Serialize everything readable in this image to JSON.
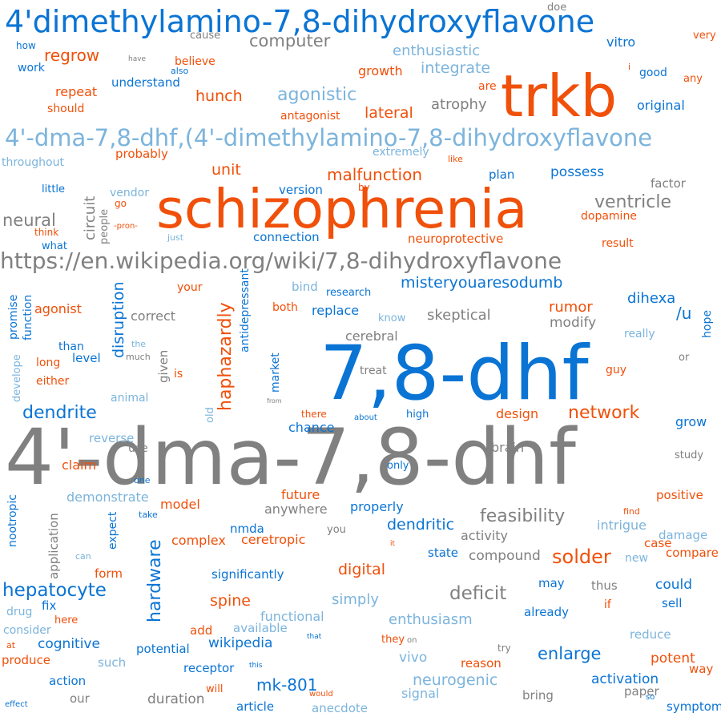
{
  "palette": {
    "gray": "#808080",
    "blue": "#0a74d4",
    "orange": "#f0500a",
    "light": "#7cb4dc"
  },
  "words": [
    {
      "t": "4'-dma-7,8-dhf",
      "c": "gray"
    },
    {
      "t": "4'dimethylamino-7,8-dihydroxyflavone",
      "c": "blue"
    },
    {
      "t": "trkb",
      "c": "orange"
    },
    {
      "t": "7,8-dhf",
      "c": "blue"
    },
    {
      "t": "schizophrenia",
      "c": "orange"
    },
    {
      "t": "4'-dma-7,8-dhf,(4'-dimethylamino-7,8-dihydroxyflavone",
      "c": "light"
    },
    {
      "t": "https://en.wikipedia.org/wiki/7,8-dihydroxyflavone",
      "c": "gray"
    },
    {
      "t": "computer",
      "c": "gray"
    },
    {
      "t": "regrow",
      "c": "orange"
    },
    {
      "t": "enthusiastic",
      "c": "light"
    },
    {
      "t": "integrate",
      "c": "light"
    },
    {
      "t": "growth",
      "c": "orange"
    },
    {
      "t": "believe",
      "c": "orange"
    },
    {
      "t": "cause",
      "c": "gray"
    },
    {
      "t": "doe",
      "c": "gray"
    },
    {
      "t": "very",
      "c": "orange"
    },
    {
      "t": "vitro",
      "c": "blue"
    },
    {
      "t": "how",
      "c": "blue"
    },
    {
      "t": "work",
      "c": "blue"
    },
    {
      "t": "have",
      "c": "gray"
    },
    {
      "t": "also",
      "c": "blue"
    },
    {
      "t": "i",
      "c": "orange"
    },
    {
      "t": "good",
      "c": "blue"
    },
    {
      "t": "any",
      "c": "orange"
    },
    {
      "t": "are",
      "c": "orange"
    },
    {
      "t": "understand",
      "c": "blue"
    },
    {
      "t": "repeat",
      "c": "orange"
    },
    {
      "t": "should",
      "c": "orange"
    },
    {
      "t": "hunch",
      "c": "orange"
    },
    {
      "t": "agonistic",
      "c": "light"
    },
    {
      "t": "lateral",
      "c": "orange"
    },
    {
      "t": "atrophy",
      "c": "gray"
    },
    {
      "t": "original",
      "c": "blue"
    },
    {
      "t": "antagonist",
      "c": "orange"
    },
    {
      "t": "probably",
      "c": "orange"
    },
    {
      "t": "extremely",
      "c": "light"
    },
    {
      "t": "like",
      "c": "orange"
    },
    {
      "t": "throughout",
      "c": "light"
    },
    {
      "t": "unit",
      "c": "orange"
    },
    {
      "t": "malfunction",
      "c": "orange"
    },
    {
      "t": "plan",
      "c": "blue"
    },
    {
      "t": "possess",
      "c": "blue"
    },
    {
      "t": "factor",
      "c": "gray"
    },
    {
      "t": "little",
      "c": "blue"
    },
    {
      "t": "circuit",
      "c": "gray"
    },
    {
      "t": "vendor",
      "c": "light"
    },
    {
      "t": "version",
      "c": "blue"
    },
    {
      "t": "by",
      "c": "orange"
    },
    {
      "t": "ventricle",
      "c": "gray"
    },
    {
      "t": "go",
      "c": "orange"
    },
    {
      "t": "neural",
      "c": "gray"
    },
    {
      "t": "people",
      "c": "gray"
    },
    {
      "t": "-pron-",
      "c": "orange"
    },
    {
      "t": "dopamine",
      "c": "orange"
    },
    {
      "t": "think",
      "c": "orange"
    },
    {
      "t": "what",
      "c": "blue"
    },
    {
      "t": "just",
      "c": "light"
    },
    {
      "t": "connection",
      "c": "blue"
    },
    {
      "t": "neuroprotective",
      "c": "orange"
    },
    {
      "t": "result",
      "c": "orange"
    },
    {
      "t": "your",
      "c": "orange"
    },
    {
      "t": "bind",
      "c": "light"
    },
    {
      "t": "research",
      "c": "blue"
    },
    {
      "t": "misteryouaresodumb",
      "c": "blue"
    },
    {
      "t": "dihexa",
      "c": "blue"
    },
    {
      "t": "promise",
      "c": "blue"
    },
    {
      "t": "function",
      "c": "blue"
    },
    {
      "t": "antidepressant",
      "c": "blue"
    },
    {
      "t": "agonist",
      "c": "orange"
    },
    {
      "t": "disruption",
      "c": "blue"
    },
    {
      "t": "correct",
      "c": "gray"
    },
    {
      "t": "haphazardly",
      "c": "orange"
    },
    {
      "t": "both",
      "c": "orange"
    },
    {
      "t": "replace",
      "c": "blue"
    },
    {
      "t": "know",
      "c": "light"
    },
    {
      "t": "skeptical",
      "c": "gray"
    },
    {
      "t": "rumor",
      "c": "orange"
    },
    {
      "t": "modify",
      "c": "gray"
    },
    {
      "t": "/u",
      "c": "blue"
    },
    {
      "t": "really",
      "c": "light"
    },
    {
      "t": "hope",
      "c": "blue"
    },
    {
      "t": "than",
      "c": "blue"
    },
    {
      "t": "level",
      "c": "blue"
    },
    {
      "t": "the",
      "c": "light"
    },
    {
      "t": "much",
      "c": "gray"
    },
    {
      "t": "cerebral",
      "c": "gray"
    },
    {
      "t": "long",
      "c": "orange"
    },
    {
      "t": "either",
      "c": "orange"
    },
    {
      "t": "develope",
      "c": "light"
    },
    {
      "t": "given",
      "c": "gray"
    },
    {
      "t": "is",
      "c": "orange"
    },
    {
      "t": "market",
      "c": "blue"
    },
    {
      "t": "treat",
      "c": "gray"
    },
    {
      "t": "guy",
      "c": "orange"
    },
    {
      "t": "or",
      "c": "gray"
    },
    {
      "t": "animal",
      "c": "light"
    },
    {
      "t": "from",
      "c": "gray"
    },
    {
      "t": "old",
      "c": "light"
    },
    {
      "t": "dendrite",
      "c": "blue"
    },
    {
      "t": "there",
      "c": "orange"
    },
    {
      "t": "about",
      "c": "blue"
    },
    {
      "t": "high",
      "c": "blue"
    },
    {
      "t": "design",
      "c": "orange"
    },
    {
      "t": "network",
      "c": "orange"
    },
    {
      "t": "grow",
      "c": "blue"
    },
    {
      "t": "chance",
      "c": "blue"
    },
    {
      "t": "reverse",
      "c": "light"
    },
    {
      "t": "use",
      "c": "gray"
    },
    {
      "t": "brain",
      "c": "gray"
    },
    {
      "t": "study",
      "c": "gray"
    },
    {
      "t": "claim",
      "c": "orange"
    },
    {
      "t": "only",
      "c": "blue"
    },
    {
      "t": "one",
      "c": "blue"
    },
    {
      "t": "nootropic",
      "c": "blue"
    },
    {
      "t": "demonstrate",
      "c": "light"
    },
    {
      "t": "future",
      "c": "orange"
    },
    {
      "t": "positive",
      "c": "orange"
    },
    {
      "t": "application",
      "c": "gray"
    },
    {
      "t": "expect",
      "c": "blue"
    },
    {
      "t": "take",
      "c": "blue"
    },
    {
      "t": "model",
      "c": "orange"
    },
    {
      "t": "anywhere",
      "c": "gray"
    },
    {
      "t": "properly",
      "c": "blue"
    },
    {
      "t": "feasibility",
      "c": "gray"
    },
    {
      "t": "find",
      "c": "orange"
    },
    {
      "t": "hardware",
      "c": "blue"
    },
    {
      "t": "nmda",
      "c": "blue"
    },
    {
      "t": "dendritic",
      "c": "blue"
    },
    {
      "t": "intrigue",
      "c": "light"
    },
    {
      "t": "damage",
      "c": "light"
    },
    {
      "t": "you",
      "c": "gray"
    },
    {
      "t": "activity",
      "c": "gray"
    },
    {
      "t": "complex",
      "c": "orange"
    },
    {
      "t": "ceretropic",
      "c": "orange"
    },
    {
      "t": "it",
      "c": "orange"
    },
    {
      "t": "case",
      "c": "orange"
    },
    {
      "t": "compare",
      "c": "orange"
    },
    {
      "t": "can",
      "c": "light"
    },
    {
      "t": "state",
      "c": "blue"
    },
    {
      "t": "compound",
      "c": "gray"
    },
    {
      "t": "solder",
      "c": "orange"
    },
    {
      "t": "new",
      "c": "light"
    },
    {
      "t": "form",
      "c": "orange"
    },
    {
      "t": "significantly",
      "c": "blue"
    },
    {
      "t": "digital",
      "c": "orange"
    },
    {
      "t": "may",
      "c": "blue"
    },
    {
      "t": "thus",
      "c": "gray"
    },
    {
      "t": "could",
      "c": "blue"
    },
    {
      "t": "hepatocyte",
      "c": "blue"
    },
    {
      "t": "deficit",
      "c": "gray"
    },
    {
      "t": "simply",
      "c": "light"
    },
    {
      "t": "fix",
      "c": "blue"
    },
    {
      "t": "spine",
      "c": "orange"
    },
    {
      "t": "if",
      "c": "orange"
    },
    {
      "t": "sell",
      "c": "blue"
    },
    {
      "t": "already",
      "c": "blue"
    },
    {
      "t": "drug",
      "c": "light"
    },
    {
      "t": "here",
      "c": "orange"
    },
    {
      "t": "functional",
      "c": "light"
    },
    {
      "t": "enthusiasm",
      "c": "light"
    },
    {
      "t": "consider",
      "c": "light"
    },
    {
      "t": "add",
      "c": "orange"
    },
    {
      "t": "available",
      "c": "light"
    },
    {
      "t": "at",
      "c": "orange"
    },
    {
      "t": "cognitive",
      "c": "blue"
    },
    {
      "t": "wikipedia",
      "c": "blue"
    },
    {
      "t": "that",
      "c": "blue"
    },
    {
      "t": "they",
      "c": "orange"
    },
    {
      "t": "on",
      "c": "gray"
    },
    {
      "t": "reduce",
      "c": "light"
    },
    {
      "t": "potential",
      "c": "blue"
    },
    {
      "t": "try",
      "c": "gray"
    },
    {
      "t": "enlarge",
      "c": "blue"
    },
    {
      "t": "produce",
      "c": "orange"
    },
    {
      "t": "such",
      "c": "light"
    },
    {
      "t": "vivo",
      "c": "light"
    },
    {
      "t": "reason",
      "c": "orange"
    },
    {
      "t": "potent",
      "c": "orange"
    },
    {
      "t": "way",
      "c": "orange"
    },
    {
      "t": "receptor",
      "c": "blue"
    },
    {
      "t": "this",
      "c": "blue"
    },
    {
      "t": "action",
      "c": "blue"
    },
    {
      "t": "neurogenic",
      "c": "light"
    },
    {
      "t": "activation",
      "c": "blue"
    },
    {
      "t": "mk-801",
      "c": "blue"
    },
    {
      "t": "will",
      "c": "orange"
    },
    {
      "t": "signal",
      "c": "light"
    },
    {
      "t": "paper",
      "c": "gray"
    },
    {
      "t": "our",
      "c": "gray"
    },
    {
      "t": "duration",
      "c": "gray"
    },
    {
      "t": "would",
      "c": "orange"
    },
    {
      "t": "bring",
      "c": "gray"
    },
    {
      "t": "so",
      "c": "blue"
    },
    {
      "t": "effect",
      "c": "blue"
    },
    {
      "t": "article",
      "c": "blue"
    },
    {
      "t": "anecdote",
      "c": "light"
    },
    {
      "t": "symptom",
      "c": "blue"
    }
  ]
}
